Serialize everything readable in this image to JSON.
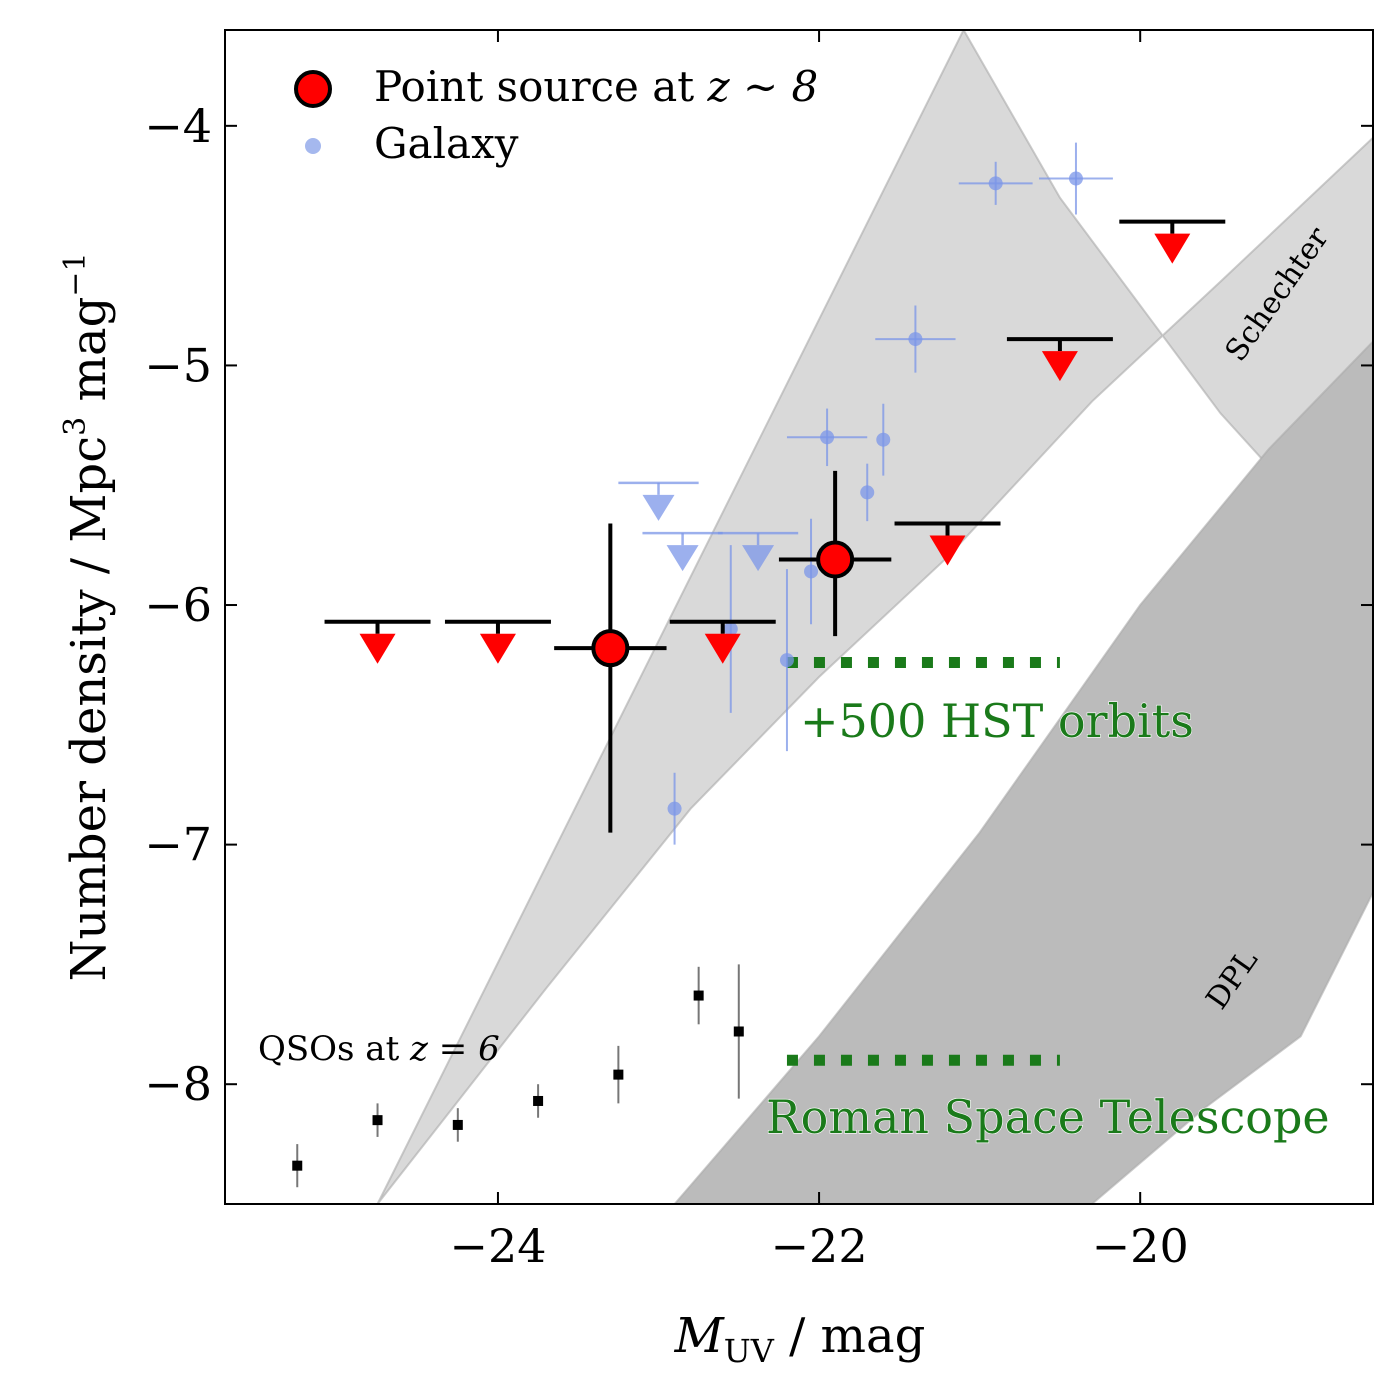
{
  "chart_data": {
    "type": "scatter",
    "xlabel_main": "M",
    "xlabel_sub": "UV",
    "xlabel_rest": " / mag",
    "ylabel_main": "Number density / Mpc",
    "ylabel_sup1": "3",
    "ylabel_mid": " mag",
    "ylabel_sup2": "−1",
    "xlim": [
      -25.7,
      -18.55
    ],
    "ylim": [
      -8.5,
      -3.6
    ],
    "x_ticks": [
      -24,
      -22,
      -20
    ],
    "x_tick_labels": [
      "−24",
      "−22",
      "−20"
    ],
    "y_ticks": [
      -8,
      -7,
      -6,
      -5,
      -4
    ],
    "y_tick_labels": [
      "−8",
      "−7",
      "−6",
      "−5",
      "−4"
    ],
    "legend": {
      "position": "top-left",
      "point_source_label": "Point source at ",
      "point_source_math": "z ∼ 8",
      "galaxy_label": "Galaxy"
    },
    "bands": [
      {
        "name": "Schechter",
        "label": "Schechter",
        "color": "#d9d9d9",
        "upper_edge": [
          [
            -21.1,
            -3.6
          ],
          [
            -20.5,
            -4.3
          ],
          [
            -19.5,
            -5.2
          ],
          [
            -18.55,
            -5.9
          ]
        ],
        "lower_edge": [
          [
            -24.75,
            -8.5
          ],
          [
            -23.7,
            -7.6
          ],
          [
            -22.8,
            -6.85
          ],
          [
            -22.0,
            -6.3
          ],
          [
            -21.2,
            -5.8
          ],
          [
            -20.3,
            -5.15
          ],
          [
            -19.5,
            -4.65
          ],
          [
            -18.55,
            -4.05
          ]
        ]
      },
      {
        "name": "DPL",
        "label": "DPL",
        "color": "#bbbbbb",
        "upper_edge": [
          [
            -22.9,
            -8.5
          ],
          [
            -22.0,
            -7.8
          ],
          [
            -21.0,
            -6.95
          ],
          [
            -20.0,
            -6.0
          ],
          [
            -19.2,
            -5.35
          ],
          [
            -18.55,
            -4.9
          ]
        ],
        "lower_edge": [
          [
            -20.3,
            -8.5
          ],
          [
            -19.6,
            -8.1
          ],
          [
            -19.0,
            -7.8
          ],
          [
            -18.55,
            -7.2
          ]
        ]
      }
    ],
    "point_source_detections": [
      {
        "x": -23.3,
        "y": -6.18,
        "xerr": 0.35,
        "yerr_low": 0.77,
        "yerr_high": 0.52
      },
      {
        "x": -21.9,
        "y": -5.81,
        "xerr": 0.35,
        "yerr_low": 0.32,
        "yerr_high": 0.37
      }
    ],
    "point_source_upper_limits": [
      {
        "x": -24.75,
        "y": -6.07,
        "xerr": 0.33
      },
      {
        "x": -24.0,
        "y": -6.07,
        "xerr": 0.33
      },
      {
        "x": -22.6,
        "y": -6.07,
        "xerr": 0.33
      },
      {
        "x": -21.2,
        "y": -5.66,
        "xerr": 0.33
      },
      {
        "x": -20.5,
        "y": -4.89,
        "xerr": 0.33
      },
      {
        "x": -19.8,
        "y": -4.4,
        "xerr": 0.33
      }
    ],
    "galaxy_points": [
      {
        "x": -22.9,
        "y": -6.85,
        "xerr": 0.0,
        "yerr": 0.15
      },
      {
        "x": -22.2,
        "y": -6.23,
        "xerr": 0.0,
        "yerr": 0.38
      },
      {
        "x": -22.55,
        "y": -6.1,
        "xerr": 0.0,
        "yerr": 0.35
      },
      {
        "x": -22.05,
        "y": -5.86,
        "xerr": 0.0,
        "yerr": 0.22
      },
      {
        "x": -21.95,
        "y": -5.3,
        "xerr": 0.25,
        "yerr": 0.12
      },
      {
        "x": -21.7,
        "y": -5.53,
        "xerr": 0.0,
        "yerr": 0.12
      },
      {
        "x": -21.6,
        "y": -5.31,
        "xerr": 0.0,
        "yerr": 0.15
      },
      {
        "x": -21.4,
        "y": -4.89,
        "xerr": 0.25,
        "yerr": 0.14
      },
      {
        "x": -20.9,
        "y": -4.24,
        "xerr": 0.23,
        "yerr": 0.09
      },
      {
        "x": -20.4,
        "y": -4.22,
        "xerr": 0.23,
        "yerr": 0.15
      }
    ],
    "galaxy_upper_limits": [
      {
        "x": -23.0,
        "y": -5.49,
        "xerr": 0.25
      },
      {
        "x": -22.85,
        "y": -5.7,
        "xerr": 0.25
      },
      {
        "x": -22.38,
        "y": -5.7,
        "xerr": 0.25
      }
    ],
    "qso_points": [
      {
        "x": -25.25,
        "y": -8.34,
        "yerr": 0.09
      },
      {
        "x": -24.75,
        "y": -8.15,
        "yerr": 0.07
      },
      {
        "x": -24.25,
        "y": -8.17,
        "yerr": 0.07
      },
      {
        "x": -23.75,
        "y": -8.07,
        "yerr": 0.07
      },
      {
        "x": -23.25,
        "y": -7.96,
        "yerr": 0.12
      },
      {
        "x": -22.75,
        "y": -7.63,
        "yerr": 0.12
      },
      {
        "x": -22.5,
        "y": -7.78,
        "yerr": 0.28
      }
    ],
    "qso_label_text": "QSOs at ",
    "qso_label_math": "z = 6",
    "survey_limits": [
      {
        "label": "+500 HST orbits",
        "y": -6.24,
        "x_range": [
          -22.2,
          -20.5
        ],
        "color": "#1a7a1a"
      },
      {
        "label": "Roman Space Telescope",
        "y": -7.9,
        "x_range": [
          -22.2,
          -20.5
        ],
        "color": "#1a7a1a"
      }
    ]
  }
}
